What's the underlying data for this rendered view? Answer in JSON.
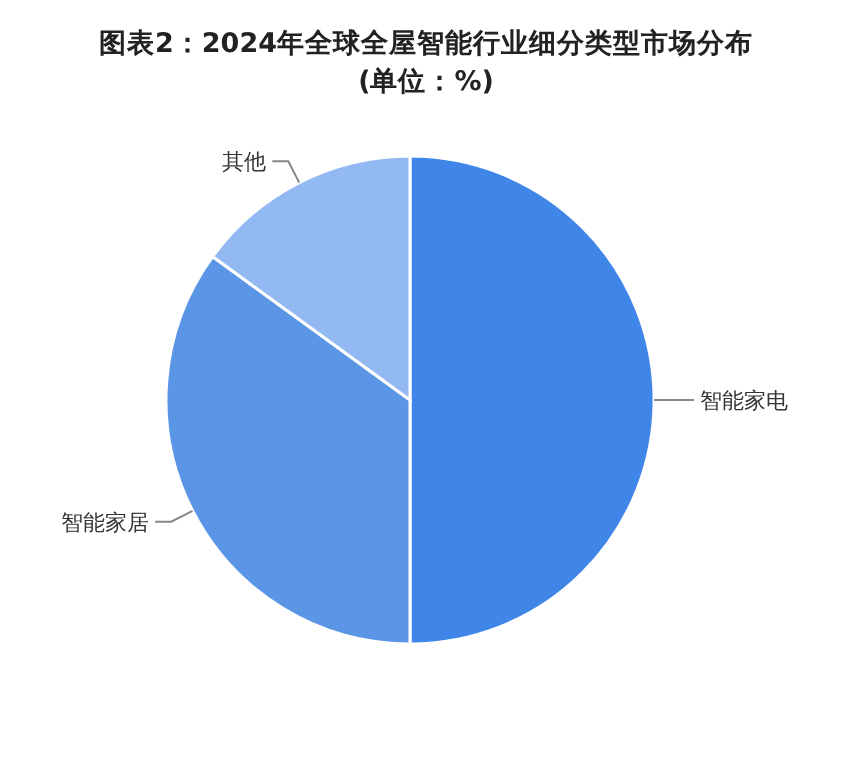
{
  "chart_data": {
    "type": "pie",
    "title": "图表2：2024年全球全屋智能行业细分类型市场分布",
    "subtitle": "(单位：%)",
    "categories": [
      "智能家电",
      "智能家居",
      "其他"
    ],
    "values": [
      50,
      35,
      15
    ],
    "colors": [
      "#3f86e8",
      "#5b95e6",
      "#92b9f2"
    ]
  }
}
